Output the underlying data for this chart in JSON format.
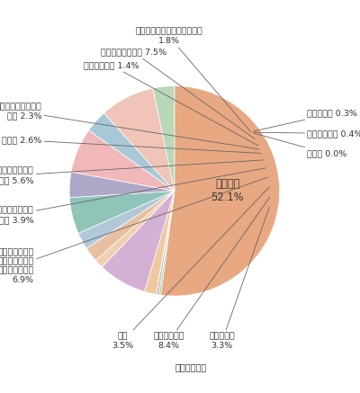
{
  "source": "提供：法務省",
  "slices": [
    {
      "label": "弁護士会\n52.1%",
      "value": 52.1,
      "color": "#E8A882"
    },
    {
      "label": "児童相談所 0.3%",
      "value": 0.3,
      "color": "#A8D4A8"
    },
    {
      "label": "暴追センター 0.4%",
      "value": 0.4,
      "color": "#C0C0C0"
    },
    {
      "label": "検察庁 0.0%",
      "value": 0.01,
      "color": "#D0D0D0"
    },
    {
      "label": "福祉・保健・医療機関・団体\n1.8%",
      "value": 1.8,
      "color": "#F0C8A0"
    },
    {
      "label": "その他機関・団体 7.5%",
      "value": 7.5,
      "color": "#D4B0D4"
    },
    {
      "label": "民間支援団体 1.4%",
      "value": 1.4,
      "color": "#F0D0B0"
    },
    {
      "label": "人権問題相談機関・\n団体 2.3%",
      "value": 2.3,
      "color": "#E8C0A0"
    },
    {
      "label": "裁判所 2.6%",
      "value": 2.6,
      "color": "#B0C8D8"
    },
    {
      "label": "労働問題相談機関・\n団体 5.6%",
      "value": 5.6,
      "color": "#90C4B8"
    },
    {
      "label": "交通事故相談機関・\n団体 3.9%",
      "value": 3.9,
      "color": "#B0A8C8"
    },
    {
      "label": "配偶者暴力相談\n支援センター・\n女性センター等\n6.9%",
      "value": 6.9,
      "color": "#F0B8B8"
    },
    {
      "label": "警察\n3.5%",
      "value": 3.5,
      "color": "#A8C8D8"
    },
    {
      "label": "地方公共団体\n8.4%",
      "value": 8.4,
      "color": "#F0C4B8"
    },
    {
      "label": "司法書士会\n3.3%",
      "value": 3.3,
      "color": "#B8D8B8"
    }
  ],
  "figsize": [
    4.0,
    4.37
  ],
  "dpi": 100
}
